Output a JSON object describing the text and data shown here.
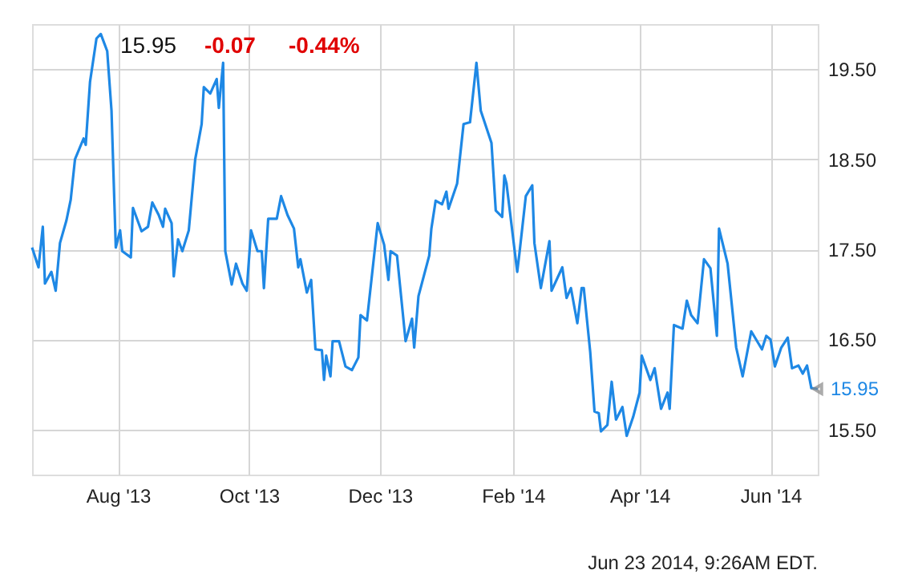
{
  "chart_data": {
    "type": "line",
    "x": [
      "2013-06-22",
      "2013-06-25",
      "2013-06-27",
      "2013-06-28",
      "2013-07-01",
      "2013-07-03",
      "2013-07-05",
      "2013-07-08",
      "2013-07-10",
      "2013-07-12",
      "2013-07-16",
      "2013-07-17",
      "2013-07-19",
      "2013-07-22",
      "2013-07-24",
      "2013-07-27",
      "2013-07-29",
      "2013-07-31",
      "2013-08-02",
      "2013-08-03",
      "2013-08-07",
      "2013-08-08",
      "2013-08-12",
      "2013-08-15",
      "2013-08-17",
      "2013-08-20",
      "2013-08-22",
      "2013-08-23",
      "2013-08-26",
      "2013-08-27",
      "2013-08-29",
      "2013-08-31",
      "2013-09-03",
      "2013-09-06",
      "2013-09-09",
      "2013-09-10",
      "2013-09-13",
      "2013-09-16",
      "2013-09-17",
      "2013-09-19",
      "2013-09-20",
      "2013-09-23",
      "2013-09-25",
      "2013-09-28",
      "2013-09-30",
      "2013-10-02",
      "2013-10-05",
      "2013-10-07",
      "2013-10-08",
      "2013-10-10",
      "2013-10-14",
      "2013-10-16",
      "2013-10-19",
      "2013-10-22",
      "2013-10-24",
      "2013-10-25",
      "2013-10-28",
      "2013-10-30",
      "2013-11-01",
      "2013-11-04",
      "2013-11-05",
      "2013-11-06",
      "2013-11-08",
      "2013-11-09",
      "2013-11-12",
      "2013-11-15",
      "2013-11-18",
      "2013-11-21",
      "2013-11-22",
      "2013-11-25",
      "2013-11-30",
      "2013-12-03",
      "2013-12-05",
      "2013-12-06",
      "2013-12-09",
      "2013-12-13",
      "2013-12-16",
      "2013-12-17",
      "2013-12-19",
      "2013-12-24",
      "2013-12-25",
      "2013-12-27",
      "2013-12-30",
      "2014-01-01",
      "2014-01-02",
      "2014-01-06",
      "2014-01-09",
      "2014-01-12",
      "2014-01-15",
      "2014-01-17",
      "2014-01-22",
      "2014-01-24",
      "2014-01-27",
      "2014-01-28",
      "2014-01-29",
      "2014-02-03",
      "2014-02-04",
      "2014-02-07",
      "2014-02-10",
      "2014-02-11",
      "2014-02-14",
      "2014-02-18",
      "2014-02-19",
      "2014-02-24",
      "2014-02-26",
      "2014-02-28",
      "2014-03-03",
      "2014-03-05",
      "2014-03-06",
      "2014-03-09",
      "2014-03-11",
      "2014-03-13",
      "2014-03-14",
      "2014-03-17",
      "2014-03-19",
      "2014-03-21",
      "2014-03-24",
      "2014-03-26",
      "2014-03-29",
      "2014-04-01",
      "2014-04-02",
      "2014-04-06",
      "2014-04-08",
      "2014-04-11",
      "2014-04-14",
      "2014-04-15",
      "2014-04-17",
      "2014-04-21",
      "2014-04-23",
      "2014-04-25",
      "2014-04-28",
      "2014-05-01",
      "2014-05-04",
      "2014-05-07",
      "2014-05-08",
      "2014-05-12",
      "2014-05-16",
      "2014-05-19",
      "2014-05-23",
      "2014-05-28",
      "2014-05-30",
      "2014-06-01",
      "2014-06-03",
      "2014-06-06",
      "2014-06-09",
      "2014-06-11",
      "2014-06-14",
      "2014-06-16",
      "2014-06-18",
      "2014-06-20",
      "2014-06-23"
    ],
    "series": [
      {
        "color": "#1e88e5",
        "values": [
          17.52,
          17.3,
          17.75,
          17.12,
          17.25,
          17.04,
          17.57,
          17.82,
          18.05,
          18.5,
          18.73,
          18.66,
          19.36,
          19.84,
          19.89,
          19.7,
          19.04,
          17.52,
          17.71,
          17.48,
          17.41,
          17.96,
          17.7,
          17.75,
          18.02,
          17.88,
          17.75,
          17.95,
          17.79,
          17.2,
          17.61,
          17.48,
          17.71,
          18.5,
          18.89,
          19.3,
          19.23,
          19.39,
          19.07,
          19.57,
          17.48,
          17.11,
          17.34,
          17.12,
          17.04,
          17.71,
          17.48,
          17.48,
          17.07,
          17.84,
          17.84,
          18.09,
          17.88,
          17.73,
          17.3,
          17.39,
          17.02,
          17.16,
          16.39,
          16.38,
          16.05,
          16.32,
          16.09,
          16.48,
          16.48,
          16.2,
          16.16,
          16.3,
          16.77,
          16.71,
          17.79,
          17.55,
          17.16,
          17.48,
          17.43,
          16.48,
          16.73,
          16.41,
          16.98,
          17.43,
          17.73,
          18.04,
          18.0,
          18.14,
          17.95,
          18.23,
          18.89,
          18.91,
          19.57,
          19.04,
          18.68,
          17.93,
          17.86,
          18.32,
          18.23,
          17.25,
          17.45,
          18.09,
          18.21,
          17.57,
          17.07,
          17.59,
          17.04,
          17.3,
          16.96,
          17.07,
          16.68,
          17.07,
          17.07,
          16.36,
          15.7,
          15.68,
          15.48,
          15.55,
          16.03,
          15.61,
          15.75,
          15.43,
          15.64,
          15.91,
          16.32,
          16.05,
          16.18,
          15.73,
          15.91,
          15.73,
          16.66,
          16.62,
          16.93,
          16.77,
          16.68,
          17.39,
          17.29,
          16.54,
          17.73,
          17.34,
          16.41,
          16.09,
          16.59,
          16.39,
          16.54,
          16.5,
          16.2,
          16.41,
          16.52,
          16.18,
          16.21,
          16.12,
          16.21,
          15.96,
          15.95
        ]
      }
    ],
    "xlim": [
      "2013-06-22",
      "2014-06-23"
    ],
    "xticks": [
      {
        "value": "2013-08-01",
        "label": "Aug '13"
      },
      {
        "value": "2013-10-01",
        "label": "Oct '13"
      },
      {
        "value": "2013-12-01",
        "label": "Dec '13"
      },
      {
        "value": "2014-02-01",
        "label": "Feb '14"
      },
      {
        "value": "2014-04-01",
        "label": "Apr '14"
      },
      {
        "value": "2014-06-01",
        "label": "Jun '14"
      }
    ],
    "ylim": [
      15.0,
      20.0
    ],
    "yticks": [
      {
        "value": 15.5,
        "label": "15.50"
      },
      {
        "value": 16.5,
        "label": "16.50"
      },
      {
        "value": 17.5,
        "label": "17.50"
      },
      {
        "value": 18.5,
        "label": "18.50"
      },
      {
        "value": 19.5,
        "label": "19.50"
      }
    ],
    "grid": true,
    "marker": "none",
    "line_style": "solid",
    "annotations": [
      "15.95",
      "-0.07",
      "-0.44%",
      {
        "text": "15.95",
        "x": "2014-06-23",
        "y": 15.95
      },
      "Jun 23 2014, 9:26AM EDT."
    ]
  }
}
